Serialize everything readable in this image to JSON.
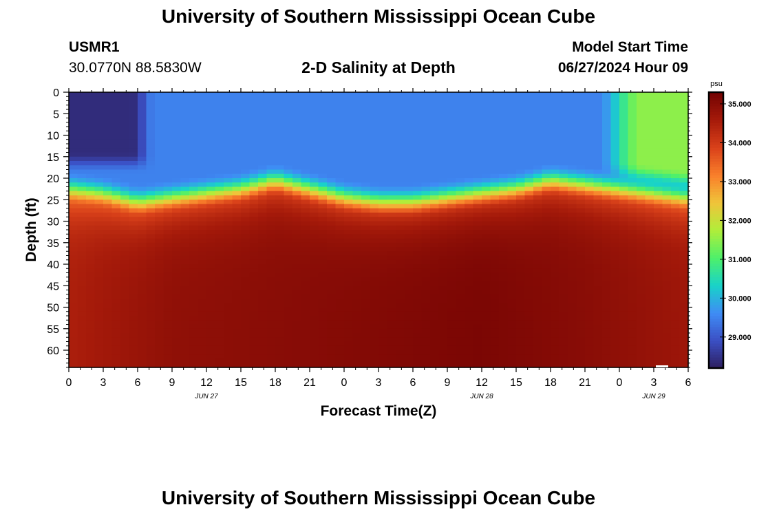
{
  "header": {
    "title": "University of Southern Mississippi Ocean Cube",
    "station_id": "USMR1",
    "station_coords": "30.0770N  88.5830W",
    "plot_subtitle": "2-D Salinity at Depth",
    "model_start_label": "Model Start Time",
    "model_start_value": "06/27/2024 Hour 09"
  },
  "footer": {
    "title": "University of Southern Mississippi Ocean Cube"
  },
  "chart_data": {
    "type": "heatmap",
    "title": "2-D Salinity at Depth",
    "xlabel": "Forecast Time(Z)",
    "ylabel": "Depth (ft)",
    "x_tick_labels": [
      "0",
      "3",
      "6",
      "9",
      "12",
      "15",
      "18",
      "21",
      "0",
      "3",
      "6",
      "9",
      "12",
      "15",
      "18",
      "21",
      "0",
      "3",
      "6"
    ],
    "x_range_hours": [
      0,
      54
    ],
    "date_labels": [
      {
        "hour": 12,
        "label": "JUN 27"
      },
      {
        "hour": 36,
        "label": "JUN 28"
      },
      {
        "hour": 51,
        "label": "JUN 29"
      }
    ],
    "y_tick_labels": [
      "0",
      "5",
      "10",
      "15",
      "20",
      "25",
      "30",
      "35",
      "40",
      "45",
      "50",
      "55",
      "60"
    ],
    "y_range_ft": [
      0,
      64
    ],
    "y_inverted": true,
    "colorbar": {
      "unit": "psu",
      "range": [
        28.2,
        35.3
      ],
      "ticks": [
        29.0,
        30.0,
        31.0,
        32.0,
        33.0,
        34.0,
        35.0
      ],
      "tick_labels": [
        "29.000",
        "30.000",
        "31.000",
        "32.000",
        "33.000",
        "34.000",
        "35.000"
      ],
      "colors": [
        "#2d1e5e",
        "#3b4fc4",
        "#3f8cf5",
        "#18d3c9",
        "#4ef06a",
        "#b0ee3a",
        "#f0c43a",
        "#f97f2b",
        "#d9411a",
        "#a51a0a",
        "#740303"
      ]
    },
    "fields": {
      "upper_layer_salinity_psu": 29.5,
      "low_pocket_salinity_psu": 28.4,
      "low_pocket_hours": [
        0,
        7
      ],
      "low_pocket_max_depth_ft": 18,
      "right_edge_upper_salinity_psu": 31.5,
      "freshening_start_hour": 46,
      "halocline_depth_ft": [
        [
          0,
          22
        ],
        [
          3,
          23
        ],
        [
          6,
          25
        ],
        [
          9,
          24
        ],
        [
          12,
          23
        ],
        [
          15,
          22
        ],
        [
          18,
          20
        ],
        [
          21,
          22
        ],
        [
          24,
          24
        ],
        [
          27,
          25
        ],
        [
          30,
          25
        ],
        [
          33,
          24
        ],
        [
          36,
          23
        ],
        [
          39,
          22
        ],
        [
          42,
          20
        ],
        [
          45,
          21
        ],
        [
          48,
          22
        ],
        [
          51,
          23
        ],
        [
          54,
          24
        ]
      ],
      "deep_salinity_psu": [
        [
          0,
          34.5
        ],
        [
          9,
          34.9
        ],
        [
          18,
          35.0
        ],
        [
          27,
          35.1
        ],
        [
          36,
          35.2
        ],
        [
          45,
          35.0
        ],
        [
          54,
          34.7
        ]
      ]
    }
  }
}
